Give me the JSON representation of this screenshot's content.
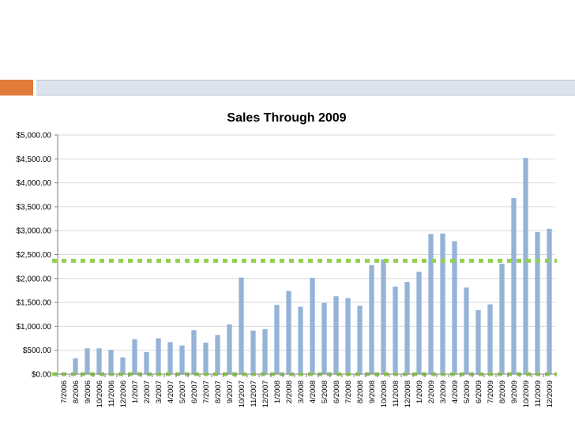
{
  "colors": {
    "bar": "#95b3d7",
    "reference_line": "#92d050",
    "accent_orange": "#e07b39",
    "accent_band": "#dce3ee",
    "axis": "#7f7f7f",
    "grid": "#d9d9d9"
  },
  "chart_data": {
    "type": "bar",
    "title": "Sales Through 2009",
    "xlabel": "",
    "ylabel": "",
    "ylim": [
      0,
      5000
    ],
    "y_ticks": [
      "$0.00",
      "$500.00",
      "$1,000.00",
      "$1,500.00",
      "$2,000.00",
      "$2,500.00",
      "$3,000.00",
      "$3,500.00",
      "$4,000.00",
      "$4,500.00",
      "$5,000.00"
    ],
    "grid": true,
    "legend": "none",
    "categories": [
      "7/2006",
      "8/2006",
      "9/2006",
      "10/2006",
      "11/2006",
      "12/2006",
      "1/2007",
      "2/2007",
      "3/2007",
      "4/2007",
      "5/2007",
      "6/2007",
      "7/2007",
      "8/2007",
      "9/2007",
      "10/2007",
      "11/2007",
      "12/2007",
      "1/2008",
      "2/2008",
      "3/2008",
      "4/2008",
      "5/2008",
      "6/2008",
      "7/2008",
      "8/2008",
      "9/2008",
      "10/2008",
      "11/2008",
      "12/2008",
      "1/2009",
      "2/2009",
      "3/2009",
      "4/2009",
      "5/2009",
      "6/2009",
      "7/2009",
      "8/2009",
      "9/2009",
      "10/2009",
      "11/2009",
      "12/2009"
    ],
    "values": [
      30,
      330,
      540,
      540,
      510,
      350,
      730,
      460,
      750,
      670,
      600,
      920,
      660,
      820,
      1040,
      2020,
      910,
      940,
      1450,
      1740,
      1410,
      2010,
      1490,
      1630,
      1590,
      1430,
      2280,
      2400,
      1830,
      1930,
      2140,
      2930,
      2940,
      2780,
      1810,
      1340,
      1460,
      2310,
      3680,
      4520,
      2970,
      3040
    ],
    "reference_lines": [
      {
        "style": "dashed",
        "value": 2370
      },
      {
        "style": "dashed",
        "value": 0
      }
    ]
  }
}
